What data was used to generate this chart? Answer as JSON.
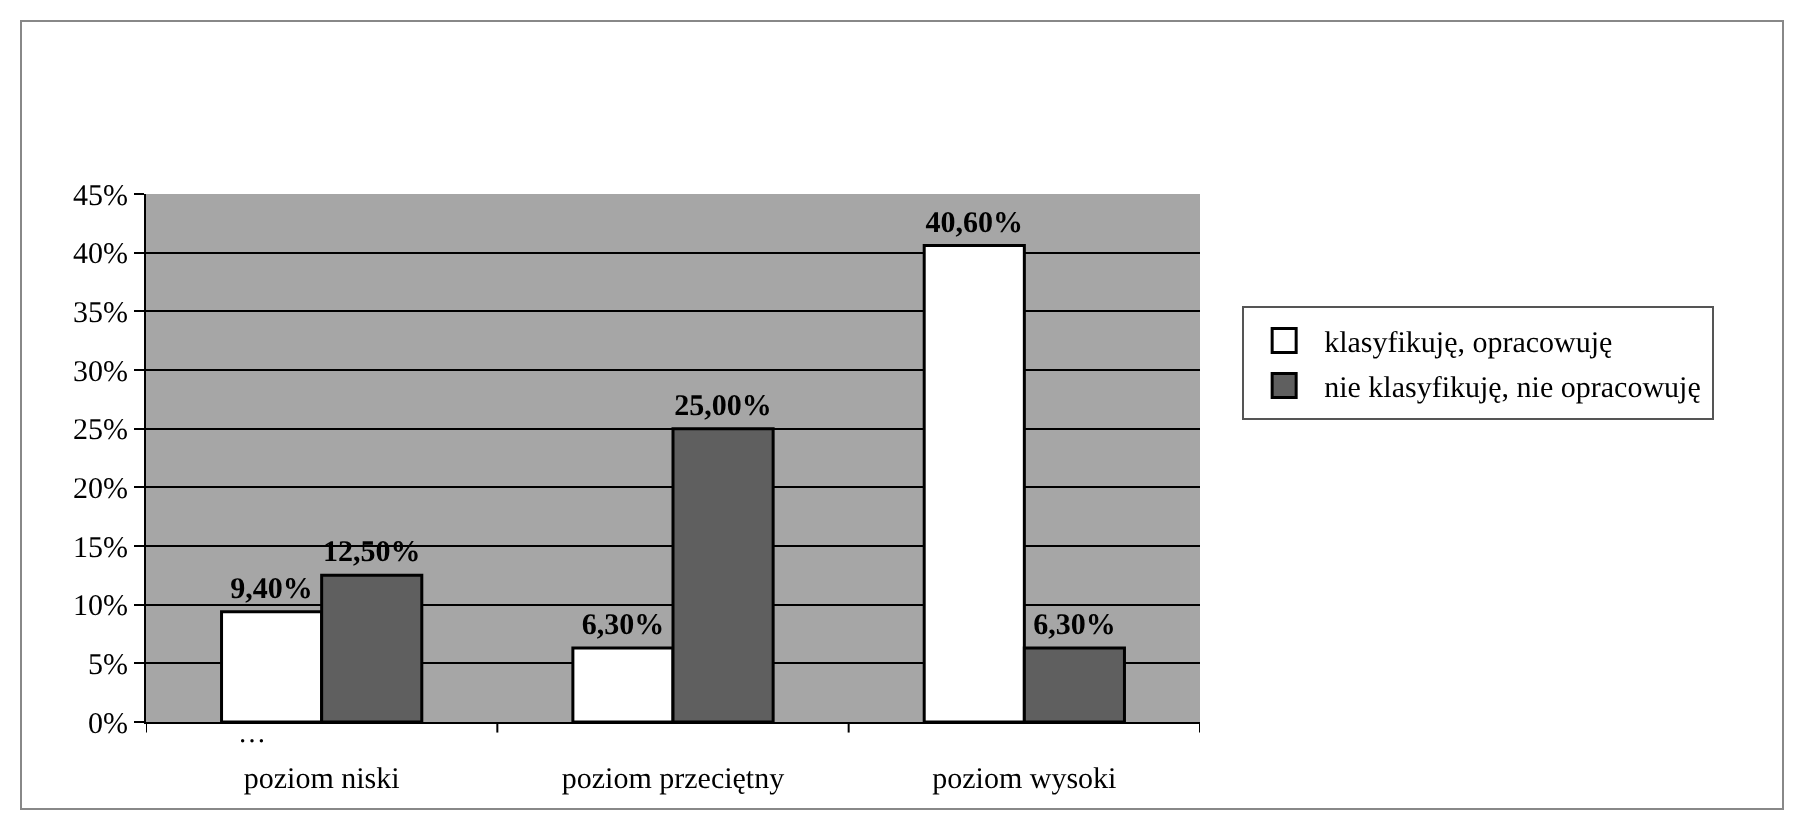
{
  "chart_data": {
    "type": "bar",
    "categories": [
      "poziom niski",
      "poziom przeciętny",
      "poziom wysoki"
    ],
    "series": [
      {
        "name": "klasyfikuję, opracowuję",
        "color": "#ffffff",
        "values": [
          9.4,
          6.3,
          40.6
        ],
        "value_labels": [
          "9,40%",
          "6,30%",
          "40,60%"
        ]
      },
      {
        "name": "nie klasyfikuję, nie opracowuję",
        "color": "#5f5f5f",
        "values": [
          12.5,
          25.0,
          6.3
        ],
        "value_labels": [
          "12,50%",
          "25,00%",
          "6,30%"
        ]
      }
    ],
    "ylim": [
      0,
      45
    ],
    "yticks": [
      {
        "value": 0,
        "label": "0%"
      },
      {
        "value": 5,
        "label": "5%"
      },
      {
        "value": 10,
        "label": "10%"
      },
      {
        "value": 15,
        "label": "15%"
      },
      {
        "value": 20,
        "label": "20%"
      },
      {
        "value": 25,
        "label": "25%"
      },
      {
        "value": 30,
        "label": "30%"
      },
      {
        "value": 35,
        "label": "35%"
      },
      {
        "value": 40,
        "label": "40%"
      },
      {
        "value": 45,
        "label": "45%"
      }
    ],
    "grid": "y",
    "legend": "right",
    "annotations": [
      "…"
    ]
  }
}
